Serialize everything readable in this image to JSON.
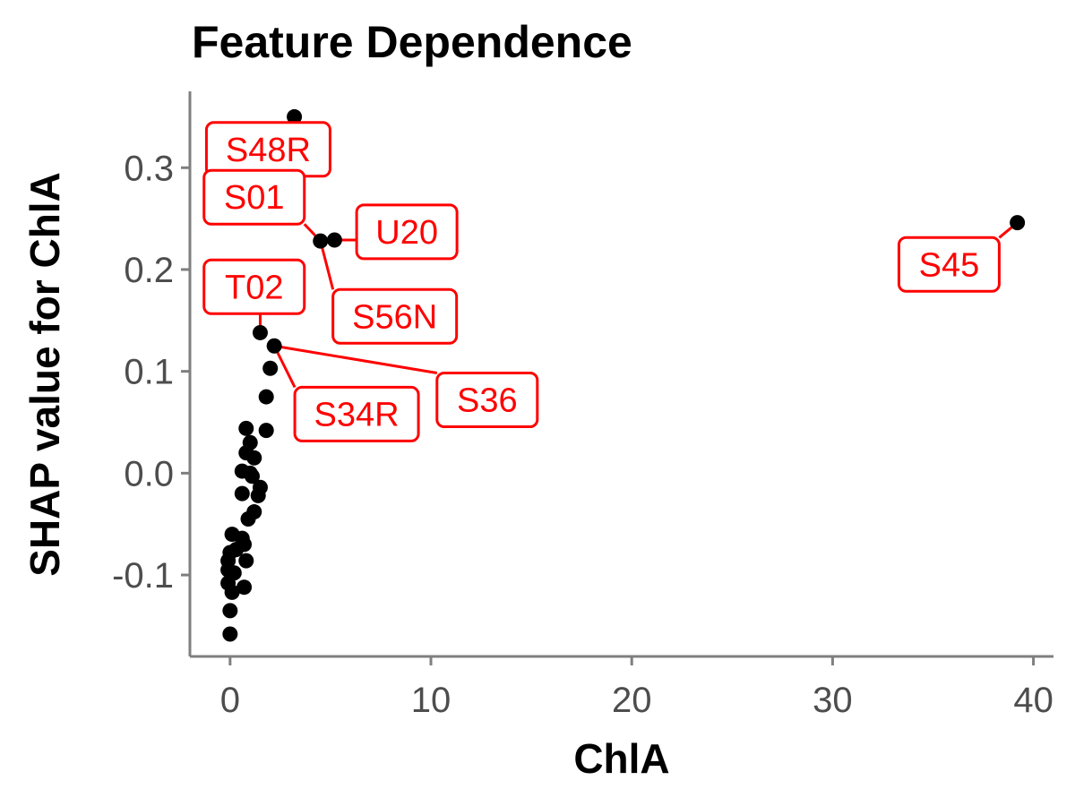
{
  "chart_data": {
    "type": "scatter",
    "title": "Feature Dependence",
    "xlabel": "ChlA",
    "ylabel": "SHAP value for ChlA",
    "xlim": [
      -2,
      41
    ],
    "ylim": [
      -0.18,
      0.375
    ],
    "x_ticks": [
      0,
      10,
      20,
      30,
      40
    ],
    "x_tick_labels": [
      "0",
      "10",
      "20",
      "30",
      "40"
    ],
    "y_ticks": [
      -0.1,
      0.0,
      0.1,
      0.2,
      0.3
    ],
    "y_tick_labels": [
      "-0.1",
      "0.0",
      "0.1",
      "0.2",
      "0.3"
    ],
    "grid": false,
    "point_color": "#000000",
    "label_color": "#ff0000",
    "points": [
      {
        "x": 3.2,
        "y": 0.35
      },
      {
        "x": 4.5,
        "y": 0.228
      },
      {
        "x": 5.2,
        "y": 0.229
      },
      {
        "x": 39.2,
        "y": 0.246
      },
      {
        "x": 1.5,
        "y": 0.138
      },
      {
        "x": 2.2,
        "y": 0.125
      },
      {
        "x": 2.0,
        "y": 0.103
      },
      {
        "x": 1.8,
        "y": 0.075
      },
      {
        "x": 1.8,
        "y": 0.042
      },
      {
        "x": 0.8,
        "y": 0.044
      },
      {
        "x": 1.0,
        "y": 0.03
      },
      {
        "x": 0.8,
        "y": 0.02
      },
      {
        "x": 1.2,
        "y": 0.015
      },
      {
        "x": 0.6,
        "y": 0.002
      },
      {
        "x": 1.0,
        "y": 0.0
      },
      {
        "x": 1.1,
        "y": -0.003
      },
      {
        "x": 1.5,
        "y": -0.014
      },
      {
        "x": 1.4,
        "y": -0.022
      },
      {
        "x": 0.6,
        "y": -0.02
      },
      {
        "x": 1.2,
        "y": -0.038
      },
      {
        "x": 0.9,
        "y": -0.045
      },
      {
        "x": 0.1,
        "y": -0.06
      },
      {
        "x": 0.6,
        "y": -0.064
      },
      {
        "x": 0.7,
        "y": -0.07
      },
      {
        "x": 0.3,
        "y": -0.075
      },
      {
        "x": 0.0,
        "y": -0.078
      },
      {
        "x": -0.1,
        "y": -0.086
      },
      {
        "x": 0.8,
        "y": -0.086
      },
      {
        "x": -0.1,
        "y": -0.095
      },
      {
        "x": 0.2,
        "y": -0.098
      },
      {
        "x": -0.1,
        "y": -0.108
      },
      {
        "x": 0.7,
        "y": -0.112
      },
      {
        "x": 0.1,
        "y": -0.117
      },
      {
        "x": 0.0,
        "y": -0.135
      },
      {
        "x": 0.0,
        "y": -0.158
      }
    ],
    "annotations": [
      {
        "text": "S48R",
        "x": 3.2,
        "y": 0.35,
        "label_x": 1.9,
        "label_y": 0.318
      },
      {
        "text": "S01",
        "x": 4.5,
        "y": 0.228,
        "label_x": 1.2,
        "label_y": 0.271
      },
      {
        "text": "U20",
        "x": 5.2,
        "y": 0.229,
        "label_x": 8.8,
        "label_y": 0.237
      },
      {
        "text": "S56N",
        "x": 4.5,
        "y": 0.228,
        "label_x": 8.2,
        "label_y": 0.154
      },
      {
        "text": "T02",
        "x": 1.5,
        "y": 0.138,
        "label_x": 1.2,
        "label_y": 0.183
      },
      {
        "text": "S34R",
        "x": 2.2,
        "y": 0.125,
        "label_x": 6.3,
        "label_y": 0.058
      },
      {
        "text": "S36",
        "x": 2.2,
        "y": 0.125,
        "label_x": 12.8,
        "label_y": 0.072
      },
      {
        "text": "S45",
        "x": 39.2,
        "y": 0.246,
        "label_x": 35.8,
        "label_y": 0.205
      }
    ]
  }
}
